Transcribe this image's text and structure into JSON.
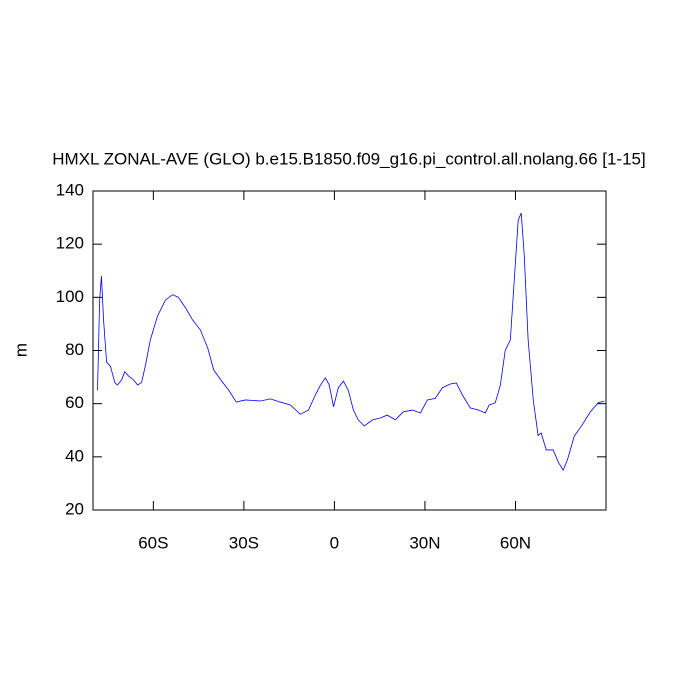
{
  "chart_data": {
    "type": "line",
    "title": "HMXL ZONAL-AVE (GLO) b.e15.B1850.f09_g16.pi_control.all.nolang.66 [1-15]",
    "y_label": "m",
    "x": [
      -78.5,
      -77.8,
      -77.2,
      -76.5,
      -75.5,
      -74.2,
      -72.8,
      -71.9,
      -70.5,
      -69.5,
      -68.2,
      -66.6,
      -65.2,
      -63.9,
      -62.6,
      -61,
      -58.6,
      -56,
      -53.6,
      -51.7,
      -49.3,
      -47,
      -44.4,
      -42,
      -40,
      -37.7,
      -35,
      -32.5,
      -29.5,
      -24.5,
      -21.2,
      -17.9,
      -14.6,
      -11.3,
      -8.6,
      -6.3,
      -4.6,
      -3,
      -1.7,
      -0.3,
      1.3,
      3,
      4.6,
      6.3,
      7.9,
      9.9,
      12.6,
      15.2,
      17.5,
      20.2,
      22.8,
      25.8,
      28.5,
      30.8,
      33.4,
      35.8,
      38.4,
      40.4,
      42.4,
      45,
      47.7,
      50,
      51.3,
      53.3,
      55,
      56.6,
      58.3,
      59.6,
      60.9,
      61.9,
      62.9,
      64.2,
      65.9,
      67.5,
      68.5,
      70.2,
      72.5,
      74.2,
      75.8,
      77.2,
      79.5,
      82.1,
      84.8,
      87.4,
      89.4
    ],
    "series": [
      {
        "color": "#0000ff",
        "values": [
          65,
          99,
          108,
          91.5,
          75.7,
          74,
          68,
          67,
          69,
          72,
          70.4,
          69,
          67,
          68,
          74.5,
          84,
          93,
          99,
          101,
          100,
          96,
          91.5,
          87.7,
          81,
          72.7,
          69,
          65,
          60.6,
          61.4,
          61,
          61.8,
          60.6,
          59.5,
          56,
          57.6,
          63.3,
          67,
          69.7,
          67,
          58.8,
          66,
          68.5,
          65,
          57.6,
          53.9,
          51.6,
          53.9,
          54.6,
          55.7,
          53.9,
          56.9,
          57.6,
          56.5,
          61.4,
          62,
          66,
          67.4,
          67.8,
          63.3,
          58.4,
          57.6,
          56.5,
          59.5,
          60.3,
          67,
          80,
          84,
          106.5,
          129,
          131.7,
          116,
          84,
          61.4,
          48,
          49,
          42.6,
          42.6,
          38,
          35,
          38.8,
          47.8,
          52,
          56.9,
          60.3,
          61
        ]
      }
    ],
    "xlim": [
      -80,
      90
    ],
    "xticks": [
      {
        "value": -60,
        "label": "60S"
      },
      {
        "value": -30,
        "label": "30S"
      },
      0,
      {
        "value": 30,
        "label": "30N"
      },
      {
        "value": 60,
        "label": "60N"
      }
    ],
    "ylim": [
      20,
      140
    ],
    "yticks": [
      20,
      40,
      60,
      80,
      100,
      120,
      140
    ]
  }
}
